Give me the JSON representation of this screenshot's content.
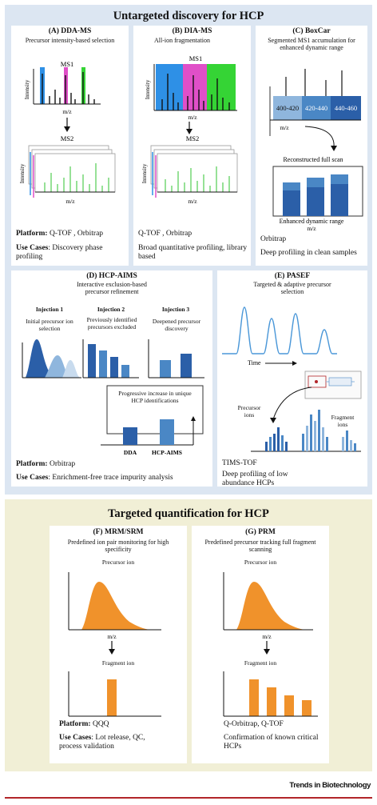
{
  "discovery": {
    "title": "Untargeted discovery for HCP",
    "bg": "#dce6f2",
    "dda": {
      "heading": "(A) DDA-MS",
      "subtitle": "Precursor intensity-based selection",
      "ms1": "MS1",
      "ms2": "MS2",
      "intensity": "Intensity",
      "mz": "m/z",
      "platform_label": "Platform:",
      "platform_value": " Q-TOF , Orbitrap",
      "usecase_label": "Use Cases",
      "usecase_value": ": Discovery phase profiling"
    },
    "dia": {
      "heading": "(B) DIA-MS",
      "subtitle": "All-ion fragmentation",
      "ms1": "MS1",
      "ms2": "MS2",
      "intensity": "Intensity",
      "mz": "m/z",
      "platform": "Q-TOF , Orbitrap",
      "usecase": "Broad quantitative profiling, library based"
    },
    "boxcar": {
      "heading": "(C) BoxCar",
      "subtitle": "Segmented MS1 accumulation for enhanced dynamic range",
      "boxes": [
        "400-420",
        "420-440",
        "440-460"
      ],
      "mz": "m/z",
      "reconstructed": "Reconstructed full scan",
      "enhanced": "Enhanced dynamic range",
      "mz2": "m/z",
      "platform": "Orbitrap",
      "usecase": "Deep profiling in clean samples"
    },
    "aims": {
      "heading": "(D) HCP-AIMS",
      "subtitle": "Interactive exclusion-based precursor refinement",
      "inj1": "Injection 1",
      "inj2": "Injection 2",
      "inj3": "Injection 3",
      "inj1_desc": "Initial precursor ion selection",
      "inj2_desc": "Previously identified precursors excluded",
      "inj3_desc": "Deepened precursor discovery",
      "progress": "Progressive increase in unique HCP identifications",
      "bar1": "DDA",
      "bar2": "HCP-AIMS",
      "platform_label": "Platform:",
      "platform_value": " Orbitrap",
      "usecase_label": "Use Cases",
      "usecase_value": ": Enrichment-free trace impurity analysis"
    },
    "pasef": {
      "heading": "(E) PASEF",
      "subtitle": "Targeted & adaptive precursor selection",
      "time": "Time",
      "precursor": "Precursor ions",
      "fragment": "Fragment ions",
      "platform": "TIMS-TOF",
      "usecase": "Deep profiling of low abundance HCPs"
    }
  },
  "targeted": {
    "title": "Targeted quantification  for HCP",
    "bg": "#f1efd6",
    "mrm": {
      "heading": "(F) MRM/SRM",
      "subtitle": "Predefined ion pair monitoring for high specificity",
      "precursor": "Precursor ion",
      "mz": "m/z",
      "fragment": "Fragment ion",
      "platform_label": "Platform:",
      "platform_value": " QQQ",
      "usecase_label": "Use Cases",
      "usecase_value": ": Lot release, QC, process validation"
    },
    "prm": {
      "heading": "(G) PRM",
      "subtitle": "Predefined precursor tracking full fragment scanning",
      "precursor": "Precursor ion",
      "mz": "m/z",
      "fragment": "Fragment ion",
      "platform": "Q-Orbitrap, Q-TOF",
      "usecase": "Confirmation of known critical HCPs"
    }
  },
  "footer": "Trends in Biotechnology",
  "colors": {
    "orange": "#f0922b",
    "blue_dark": "#2b5fa8",
    "blue_mid": "#4a87c5",
    "blue_light": "#8fb6dd",
    "pink": "#e04fc8",
    "green": "#35d435",
    "cyan_blue": "#2e90e6",
    "red_line": "#b2262a"
  }
}
